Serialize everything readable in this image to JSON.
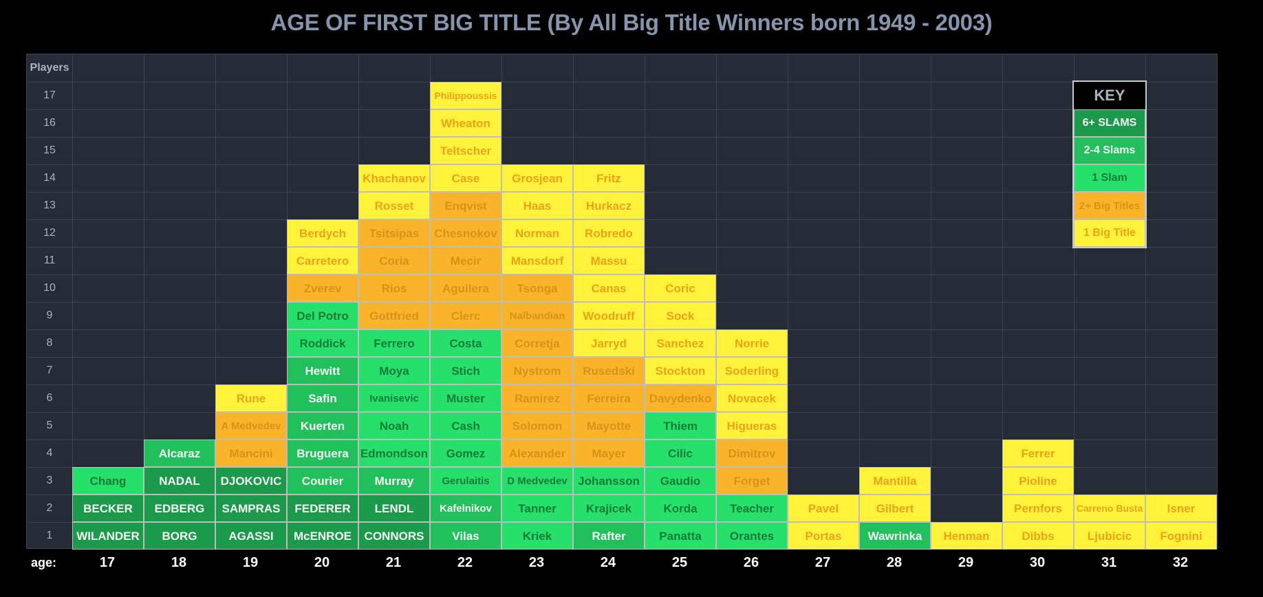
{
  "chart_data": {
    "type": "table",
    "title": "AGE OF FIRST BIG TITLE (By All Big Title Winners born 1949 - 2003)",
    "ylabel": "Players",
    "xlabel": "age:",
    "ages": [
      "17",
      "18",
      "19",
      "20",
      "21",
      "22",
      "23",
      "24",
      "25",
      "26",
      "27",
      "28",
      "29",
      "30",
      "31",
      "32"
    ],
    "rows": [
      "1",
      "2",
      "3",
      "4",
      "5",
      "6",
      "7",
      "8",
      "9",
      "10",
      "11",
      "12",
      "13",
      "14",
      "15",
      "16",
      "17"
    ],
    "colors": {
      "six_plus": "#1c9a4c",
      "two_four": "#22bf5d",
      "one_slam": "#27e06c",
      "two_big": "#f9b42c",
      "one_big": "#fef33a"
    },
    "text_colors": {
      "six_plus": "#f4f4f4",
      "two_four": "#f4f4f4",
      "one_slam": "#177a39",
      "two_big": "#d99214",
      "one_big": "#e9a21a"
    },
    "key": {
      "title": "KEY",
      "items": [
        {
          "label": "6+ SLAMS",
          "cat": "six_plus"
        },
        {
          "label": "2-4 Slams",
          "cat": "two_four"
        },
        {
          "label": "1 Slam",
          "cat": "one_slam"
        },
        {
          "label": "2+ Big Titles",
          "cat": "two_big"
        },
        {
          "label": "1 Big Title",
          "cat": "one_big"
        }
      ]
    },
    "columns": [
      {
        "age": "17",
        "players": [
          {
            "name": "WILANDER",
            "cat": "six_plus"
          },
          {
            "name": "BECKER",
            "cat": "six_plus"
          },
          {
            "name": "Chang",
            "cat": "one_slam"
          }
        ]
      },
      {
        "age": "18",
        "players": [
          {
            "name": "BORG",
            "cat": "six_plus"
          },
          {
            "name": "EDBERG",
            "cat": "six_plus"
          },
          {
            "name": "NADAL",
            "cat": "six_plus"
          },
          {
            "name": "Alcaraz",
            "cat": "two_four"
          }
        ]
      },
      {
        "age": "19",
        "players": [
          {
            "name": "AGASSI",
            "cat": "six_plus"
          },
          {
            "name": "SAMPRAS",
            "cat": "six_plus"
          },
          {
            "name": "DJOKOVIC",
            "cat": "six_plus"
          },
          {
            "name": "Mancini",
            "cat": "two_big"
          },
          {
            "name": "A Medvedev",
            "cat": "two_big"
          },
          {
            "name": "Rune",
            "cat": "one_big"
          }
        ]
      },
      {
        "age": "20",
        "players": [
          {
            "name": "McENROE",
            "cat": "six_plus"
          },
          {
            "name": "FEDERER",
            "cat": "six_plus"
          },
          {
            "name": "Courier",
            "cat": "two_four"
          },
          {
            "name": "Bruguera",
            "cat": "two_four"
          },
          {
            "name": "Kuerten",
            "cat": "two_four"
          },
          {
            "name": "Safin",
            "cat": "two_four"
          },
          {
            "name": "Hewitt",
            "cat": "two_four"
          },
          {
            "name": "Roddick",
            "cat": "one_slam"
          },
          {
            "name": "Del Potro",
            "cat": "one_slam"
          },
          {
            "name": "Zverev",
            "cat": "two_big"
          },
          {
            "name": "Carretero",
            "cat": "one_big"
          },
          {
            "name": "Berdych",
            "cat": "one_big"
          }
        ]
      },
      {
        "age": "21",
        "players": [
          {
            "name": "CONNORS",
            "cat": "six_plus"
          },
          {
            "name": "LENDL",
            "cat": "six_plus"
          },
          {
            "name": "Murray",
            "cat": "two_four"
          },
          {
            "name": "Edmondson",
            "cat": "one_slam"
          },
          {
            "name": "Noah",
            "cat": "one_slam"
          },
          {
            "name": "Ivanisevic",
            "cat": "one_slam"
          },
          {
            "name": "Moya",
            "cat": "one_slam"
          },
          {
            "name": "Ferrero",
            "cat": "one_slam"
          },
          {
            "name": "Gottfried",
            "cat": "two_big"
          },
          {
            "name": "Rios",
            "cat": "two_big"
          },
          {
            "name": "Coria",
            "cat": "two_big"
          },
          {
            "name": "Tsitsipas",
            "cat": "two_big"
          },
          {
            "name": "Rosset",
            "cat": "one_big"
          },
          {
            "name": "Khachanov",
            "cat": "one_big"
          }
        ]
      },
      {
        "age": "22",
        "players": [
          {
            "name": "Vilas",
            "cat": "two_four"
          },
          {
            "name": "Kafelnikov",
            "cat": "two_four"
          },
          {
            "name": "Gerulaitis",
            "cat": "one_slam"
          },
          {
            "name": "Gomez",
            "cat": "one_slam"
          },
          {
            "name": "Cash",
            "cat": "one_slam"
          },
          {
            "name": "Muster",
            "cat": "one_slam"
          },
          {
            "name": "Stich",
            "cat": "one_slam"
          },
          {
            "name": "Costa",
            "cat": "one_slam"
          },
          {
            "name": "Clerc",
            "cat": "two_big"
          },
          {
            "name": "Aguilera",
            "cat": "two_big"
          },
          {
            "name": "Mecir",
            "cat": "two_big"
          },
          {
            "name": "Chesnokov",
            "cat": "two_big"
          },
          {
            "name": "Enqvist",
            "cat": "two_big"
          },
          {
            "name": "Case",
            "cat": "one_big"
          },
          {
            "name": "Teltscher",
            "cat": "one_big"
          },
          {
            "name": "Wheaton",
            "cat": "one_big"
          },
          {
            "name": "Philippoussis",
            "cat": "one_big"
          }
        ]
      },
      {
        "age": "23",
        "players": [
          {
            "name": "Kriek",
            "cat": "one_slam"
          },
          {
            "name": "Tanner",
            "cat": "one_slam"
          },
          {
            "name": "D Medvedev",
            "cat": "one_slam"
          },
          {
            "name": "Alexander",
            "cat": "two_big"
          },
          {
            "name": "Solomon",
            "cat": "two_big"
          },
          {
            "name": "Ramirez",
            "cat": "two_big"
          },
          {
            "name": "Nystrom",
            "cat": "two_big"
          },
          {
            "name": "Corretja",
            "cat": "two_big"
          },
          {
            "name": "Nalbandian",
            "cat": "two_big"
          },
          {
            "name": "Tsonga",
            "cat": "two_big"
          },
          {
            "name": "Mansdorf",
            "cat": "one_big"
          },
          {
            "name": "Norman",
            "cat": "one_big"
          },
          {
            "name": "Haas",
            "cat": "one_big"
          },
          {
            "name": "Grosjean",
            "cat": "one_big"
          }
        ]
      },
      {
        "age": "24",
        "players": [
          {
            "name": "Rafter",
            "cat": "two_four"
          },
          {
            "name": "Krajicek",
            "cat": "one_slam"
          },
          {
            "name": "Johansson",
            "cat": "one_slam"
          },
          {
            "name": "Mayer",
            "cat": "two_big"
          },
          {
            "name": "Mayotte",
            "cat": "two_big"
          },
          {
            "name": "Ferreira",
            "cat": "two_big"
          },
          {
            "name": "Rusedski",
            "cat": "two_big"
          },
          {
            "name": "Jarryd",
            "cat": "one_big"
          },
          {
            "name": "Woodruff",
            "cat": "one_big"
          },
          {
            "name": "Canas",
            "cat": "one_big"
          },
          {
            "name": "Massu",
            "cat": "one_big"
          },
          {
            "name": "Robredo",
            "cat": "one_big"
          },
          {
            "name": "Hurkacz",
            "cat": "one_big"
          },
          {
            "name": "Fritz",
            "cat": "one_big"
          }
        ]
      },
      {
        "age": "25",
        "players": [
          {
            "name": "Panatta",
            "cat": "one_slam"
          },
          {
            "name": "Korda",
            "cat": "one_slam"
          },
          {
            "name": "Gaudio",
            "cat": "one_slam"
          },
          {
            "name": "Cilic",
            "cat": "one_slam"
          },
          {
            "name": "Thiem",
            "cat": "one_slam"
          },
          {
            "name": "Davydenko",
            "cat": "two_big"
          },
          {
            "name": "Stockton",
            "cat": "one_big"
          },
          {
            "name": "Sanchez",
            "cat": "one_big"
          },
          {
            "name": "Sock",
            "cat": "one_big"
          },
          {
            "name": "Coric",
            "cat": "one_big"
          }
        ]
      },
      {
        "age": "26",
        "players": [
          {
            "name": "Orantes",
            "cat": "one_slam"
          },
          {
            "name": "Teacher",
            "cat": "one_slam"
          },
          {
            "name": "Forget",
            "cat": "two_big"
          },
          {
            "name": "Dimitrov",
            "cat": "two_big"
          },
          {
            "name": "Higueras",
            "cat": "one_big"
          },
          {
            "name": "Novacek",
            "cat": "one_big"
          },
          {
            "name": "Soderling",
            "cat": "one_big"
          },
          {
            "name": "Norrie",
            "cat": "one_big"
          }
        ]
      },
      {
        "age": "27",
        "players": [
          {
            "name": "Portas",
            "cat": "one_big"
          },
          {
            "name": "Pavel",
            "cat": "one_big"
          }
        ]
      },
      {
        "age": "28",
        "players": [
          {
            "name": "Wawrinka",
            "cat": "two_four"
          },
          {
            "name": "Gilbert",
            "cat": "one_big"
          },
          {
            "name": "Mantilla",
            "cat": "one_big"
          }
        ]
      },
      {
        "age": "29",
        "players": [
          {
            "name": "Henman",
            "cat": "one_big"
          }
        ]
      },
      {
        "age": "30",
        "players": [
          {
            "name": "Dibbs",
            "cat": "one_big"
          },
          {
            "name": "Pernfors",
            "cat": "one_big"
          },
          {
            "name": "Pioline",
            "cat": "one_big"
          },
          {
            "name": "Ferrer",
            "cat": "one_big"
          }
        ]
      },
      {
        "age": "31",
        "players": [
          {
            "name": "Ljubicic",
            "cat": "one_big"
          },
          {
            "name": "Carreno Busta",
            "cat": "one_big"
          }
        ]
      },
      {
        "age": "32",
        "players": [
          {
            "name": "Fognini",
            "cat": "one_big"
          },
          {
            "name": "Isner",
            "cat": "one_big"
          }
        ]
      }
    ]
  }
}
